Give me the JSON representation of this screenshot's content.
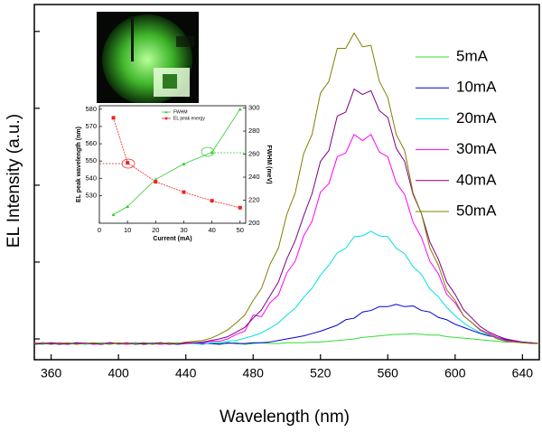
{
  "chart_data": [
    {
      "type": "line",
      "xlabel": "Wavelength (nm)",
      "ylabel": "EL Intensity (a.u.)",
      "x": [
        350,
        355,
        360,
        365,
        370,
        375,
        380,
        385,
        390,
        395,
        400,
        405,
        410,
        415,
        420,
        425,
        430,
        435,
        440,
        445,
        450,
        455,
        460,
        465,
        470,
        475,
        480,
        485,
        490,
        495,
        500,
        505,
        510,
        515,
        520,
        525,
        530,
        535,
        540,
        545,
        550,
        555,
        560,
        565,
        570,
        575,
        580,
        585,
        590,
        595,
        600,
        605,
        610,
        615,
        620,
        625,
        630,
        635,
        640,
        645,
        650
      ],
      "xlim": [
        350,
        650
      ],
      "xticks": [
        360,
        400,
        440,
        480,
        520,
        560,
        600,
        640
      ],
      "ylim": [
        -0.27,
        4.35
      ],
      "yticks": [
        0,
        1,
        2,
        3,
        4
      ],
      "legend": "upper right",
      "series": [
        {
          "name": "5mA",
          "color": "#33dd33",
          "values": [
            -0.07,
            -0.06,
            -0.05,
            -0.06,
            -0.06,
            -0.07,
            -0.05,
            -0.06,
            -0.06,
            -0.05,
            -0.07,
            -0.06,
            -0.06,
            -0.05,
            -0.06,
            -0.07,
            -0.06,
            -0.05,
            -0.06,
            -0.06,
            -0.07,
            -0.05,
            -0.06,
            -0.06,
            -0.05,
            -0.07,
            -0.06,
            -0.05,
            -0.06,
            -0.06,
            -0.05,
            -0.05,
            -0.05,
            -0.04,
            -0.04,
            -0.03,
            -0.02,
            -0.01,
            0.0,
            0.02,
            0.03,
            0.04,
            0.05,
            0.06,
            0.06,
            0.07,
            0.06,
            0.05,
            0.05,
            0.03,
            0.02,
            0.01,
            0.0,
            -0.01,
            -0.02,
            -0.03,
            -0.04,
            -0.04,
            -0.05,
            -0.05,
            -0.06
          ]
        },
        {
          "name": "10mA",
          "color": "#0000cc",
          "values": [
            -0.06,
            -0.05,
            -0.06,
            -0.07,
            -0.06,
            -0.05,
            -0.06,
            -0.06,
            -0.07,
            -0.05,
            -0.06,
            -0.06,
            -0.05,
            -0.07,
            -0.06,
            -0.05,
            -0.06,
            -0.07,
            -0.06,
            -0.05,
            -0.06,
            -0.06,
            -0.07,
            -0.05,
            -0.06,
            -0.06,
            -0.05,
            -0.05,
            -0.04,
            -0.02,
            0.0,
            0.02,
            0.04,
            0.07,
            0.1,
            0.14,
            0.18,
            0.25,
            0.27,
            0.35,
            0.37,
            0.42,
            0.42,
            0.45,
            0.42,
            0.43,
            0.37,
            0.35,
            0.28,
            0.25,
            0.19,
            0.15,
            0.11,
            0.07,
            0.04,
            0.02,
            -0.01,
            -0.03,
            -0.04,
            -0.05,
            -0.06
          ]
        },
        {
          "name": "20mA",
          "color": "#00e0e0",
          "values": [
            -0.06,
            -0.07,
            -0.05,
            -0.06,
            -0.06,
            -0.05,
            -0.07,
            -0.06,
            -0.05,
            -0.06,
            -0.06,
            -0.07,
            -0.05,
            -0.06,
            -0.05,
            -0.07,
            -0.06,
            -0.06,
            -0.05,
            -0.06,
            -0.07,
            -0.05,
            -0.05,
            -0.03,
            -0.02,
            0.01,
            0.04,
            0.08,
            0.14,
            0.21,
            0.31,
            0.4,
            0.54,
            0.66,
            0.83,
            0.96,
            1.12,
            1.18,
            1.33,
            1.34,
            1.4,
            1.34,
            1.33,
            1.18,
            1.11,
            0.94,
            0.84,
            0.65,
            0.55,
            0.41,
            0.3,
            0.21,
            0.14,
            0.08,
            0.05,
            0.01,
            -0.02,
            -0.04,
            -0.05,
            -0.05,
            -0.06
          ]
        },
        {
          "name": "30mA",
          "color": "#ff00ff",
          "values": [
            -0.05,
            -0.06,
            -0.07,
            -0.05,
            -0.06,
            -0.06,
            -0.05,
            -0.07,
            -0.06,
            -0.05,
            -0.06,
            -0.07,
            -0.06,
            -0.05,
            -0.06,
            -0.07,
            -0.05,
            -0.06,
            -0.06,
            -0.05,
            -0.05,
            -0.03,
            -0.03,
            0.0,
            0.06,
            0.1,
            0.31,
            0.29,
            0.47,
            0.57,
            0.86,
            1.01,
            1.34,
            1.53,
            1.91,
            2.02,
            2.37,
            2.42,
            2.66,
            2.58,
            2.66,
            2.43,
            2.37,
            2.03,
            1.88,
            1.52,
            1.32,
            1.01,
            0.85,
            0.58,
            0.47,
            0.3,
            0.21,
            0.12,
            0.07,
            0.02,
            -0.02,
            -0.03,
            -0.05,
            -0.05,
            -0.06
          ]
        },
        {
          "name": "40mA",
          "color": "#800080",
          "values": [
            -0.07,
            -0.06,
            -0.05,
            -0.06,
            -0.07,
            -0.05,
            -0.06,
            -0.06,
            -0.07,
            -0.05,
            -0.06,
            -0.05,
            -0.07,
            -0.06,
            -0.06,
            -0.05,
            -0.07,
            -0.06,
            -0.05,
            -0.05,
            -0.04,
            -0.02,
            0.0,
            0.03,
            0.09,
            0.15,
            0.27,
            0.38,
            0.56,
            0.74,
            1.04,
            1.28,
            1.6,
            1.89,
            2.31,
            2.45,
            2.9,
            2.95,
            3.25,
            3.18,
            3.23,
            2.97,
            2.88,
            2.48,
            2.31,
            1.88,
            1.63,
            1.26,
            1.04,
            0.74,
            0.58,
            0.38,
            0.27,
            0.16,
            0.09,
            0.04,
            0.0,
            -0.02,
            -0.04,
            -0.05,
            -0.06
          ]
        },
        {
          "name": "50mA",
          "color": "#808000",
          "values": [
            -0.06,
            -0.05,
            -0.07,
            -0.06,
            -0.05,
            -0.07,
            -0.06,
            -0.05,
            -0.06,
            -0.07,
            -0.05,
            -0.06,
            -0.06,
            -0.05,
            -0.07,
            -0.06,
            -0.05,
            -0.06,
            -0.04,
            -0.03,
            -0.02,
            0.01,
            0.06,
            0.12,
            0.21,
            0.31,
            0.5,
            0.66,
            0.97,
            1.18,
            1.62,
            1.9,
            2.41,
            2.66,
            3.2,
            3.35,
            3.78,
            3.78,
            3.98,
            3.8,
            3.82,
            3.35,
            3.14,
            2.66,
            2.45,
            1.9,
            1.63,
            1.18,
            0.96,
            0.64,
            0.5,
            0.3,
            0.21,
            0.11,
            0.06,
            0.0,
            -0.03,
            -0.04,
            -0.05,
            -0.06,
            -0.06
          ]
        }
      ]
    },
    {
      "type": "line",
      "xlabel": "Current (mA)",
      "ylabel": "EL peak wavelength (nm)",
      "y2label": "FWHM (meV)",
      "x": [
        5,
        10,
        20,
        30,
        40,
        50
      ],
      "xlim": [
        0,
        52
      ],
      "xticks": [
        0,
        10,
        20,
        30,
        40,
        50
      ],
      "ylim": [
        514,
        582
      ],
      "yticks": [
        530,
        540,
        550,
        560,
        570,
        580
      ],
      "y2lim": [
        200,
        302
      ],
      "y2ticks": [
        200,
        220,
        240,
        260,
        280,
        300
      ],
      "legend": "upper center",
      "series": [
        {
          "name": "FWHM",
          "color": "#33cc33",
          "axis": "y2",
          "marker": "triangle",
          "values": [
            207.5,
            214.5,
            238,
            251.5,
            261.5,
            299
          ]
        },
        {
          "name": "EL peak energy",
          "color": "#ee2222",
          "axis": "y",
          "marker": "square",
          "values": [
            575,
            549,
            538,
            532,
            527,
            523
          ]
        }
      ]
    }
  ]
}
